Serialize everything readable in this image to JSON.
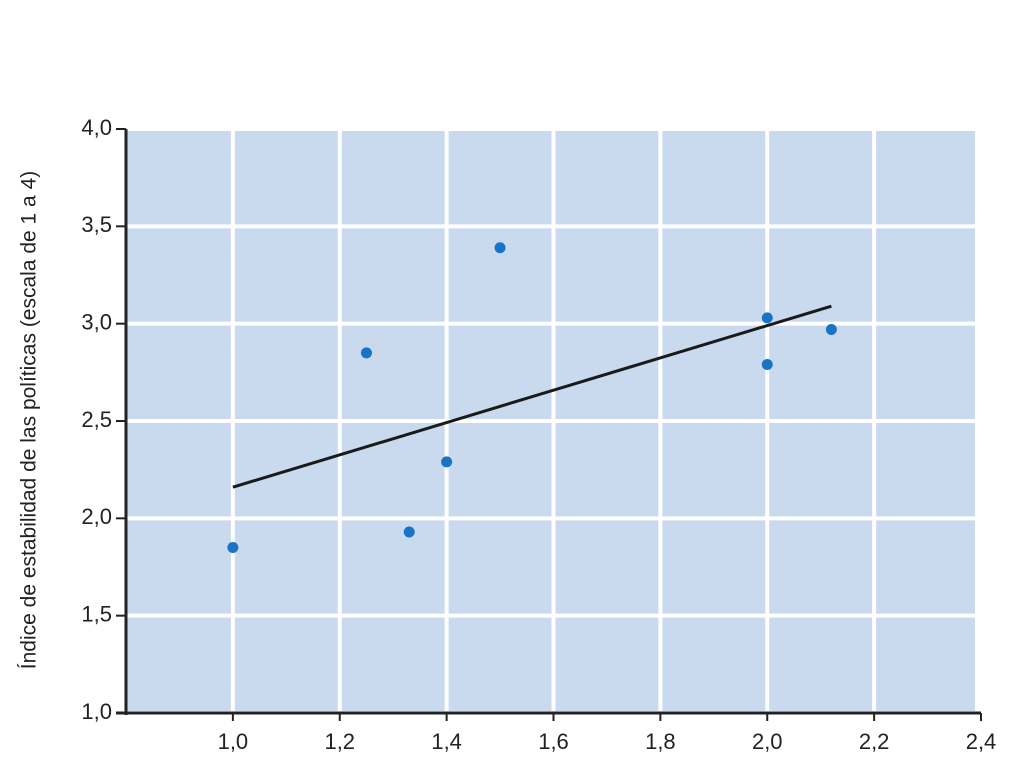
{
  "chart_data": {
    "type": "scatter",
    "y_label": "Índice de estabilidad de las políticas (escala de 1 a 4)",
    "x": [
      1.0,
      1.25,
      1.33,
      1.4,
      1.5,
      2.0,
      2.0,
      2.12
    ],
    "values": [
      1.85,
      2.85,
      1.93,
      2.29,
      3.39,
      3.03,
      2.79,
      2.97
    ],
    "color": "#1a74c6",
    "trend": {
      "x": [
        1.0,
        2.12
      ],
      "y": [
        2.16,
        3.09
      ],
      "color": "#1a1a1a"
    },
    "xlim": [
      0.8,
      2.4
    ],
    "xticks": [
      {
        "value": 1.0,
        "label": "1,0"
      },
      {
        "value": 1.2,
        "label": "1,2"
      },
      {
        "value": 1.4,
        "label": "1,4"
      },
      {
        "value": 1.6,
        "label": "1,6"
      },
      {
        "value": 1.8,
        "label": "1,8"
      },
      {
        "value": 2.0,
        "label": "2,0"
      },
      {
        "value": 2.2,
        "label": "2,2"
      },
      {
        "value": 2.4,
        "label": "2,4"
      }
    ],
    "ylim": [
      1.0,
      4.0
    ],
    "yticks": [
      {
        "value": 1.0,
        "label": "1,0"
      },
      {
        "value": 1.5,
        "label": "1,5"
      },
      {
        "value": 2.0,
        "label": "2,0"
      },
      {
        "value": 2.5,
        "label": "2,5"
      },
      {
        "value": 3.0,
        "label": "3,0"
      },
      {
        "value": 3.5,
        "label": "3,5"
      },
      {
        "value": 4.0,
        "label": "4,0"
      }
    ],
    "grid": true,
    "background": "#c9d9ee"
  }
}
